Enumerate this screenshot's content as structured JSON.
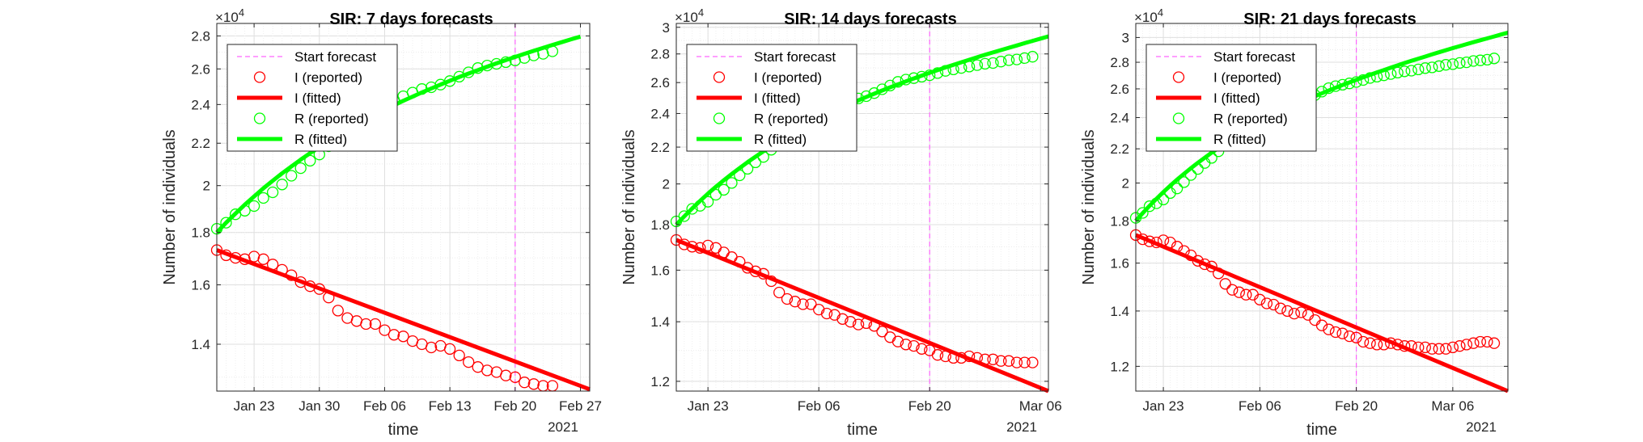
{
  "figure": {
    "panels_count": 3
  },
  "chart_data": [
    {
      "type": "line",
      "title": "SIR: 7 days forecasts",
      "xlabel": "time",
      "ylabel": "Number of individuals",
      "y_scale": "log",
      "y_exponent_label": "×10^4",
      "x_secondary_label": "2021",
      "xlim": [
        "2021-01-19",
        "2021-02-28"
      ],
      "ylim": [
        12600,
        28800
      ],
      "yticks": [
        14000,
        16000,
        18000,
        20000,
        22000,
        24000,
        26000,
        28000
      ],
      "ytick_labels": [
        "1.4",
        "1.6",
        "1.8",
        "2",
        "2.2",
        "2.4",
        "2.6",
        "2.8"
      ],
      "xticks": [
        "2021-01-23",
        "2021-01-30",
        "2021-02-06",
        "2021-02-13",
        "2021-02-20",
        "2021-02-27"
      ],
      "xtick_labels": [
        "Jan 23",
        "Jan 30",
        "Feb 06",
        "Feb 13",
        "Feb 20",
        "Feb 27"
      ],
      "grid": true,
      "legend_position": "top-left",
      "start_forecast": "2021-02-20",
      "series": [
        {
          "name": "Start forecast",
          "role": "vline",
          "color": "#ff66ff",
          "style": "dashed"
        },
        {
          "name": "I (reported)",
          "role": "scatter",
          "color": "#ff0000",
          "x_start": "2021-01-19",
          "values": [
            17300,
            17100,
            17000,
            16950,
            17050,
            16950,
            16750,
            16550,
            16350,
            16100,
            15950,
            15850,
            15550,
            15100,
            14850,
            14750,
            14650,
            14650,
            14450,
            14300,
            14250,
            14100,
            14000,
            13900,
            13950,
            13850,
            13650,
            13450,
            13300,
            13200,
            13150,
            13050,
            13000,
            12850,
            12800,
            12750,
            12750
          ]
        },
        {
          "name": "I (fitted)",
          "role": "line",
          "color": "#ff0000",
          "x": [
            "2021-01-19",
            "2021-02-28"
          ],
          "values": [
            17300,
            12650
          ]
        },
        {
          "name": "R (reported)",
          "role": "scatter",
          "color": "#00ff00",
          "x_start": "2021-01-19",
          "values": [
            18150,
            18400,
            18750,
            18900,
            19100,
            19450,
            19700,
            20050,
            20450,
            20800,
            21150,
            21450,
            21850,
            22250,
            22650,
            23000,
            23350,
            23650,
            24000,
            24250,
            24450,
            24650,
            24850,
            24950,
            25100,
            25300,
            25550,
            25800,
            26050,
            26200,
            26300,
            26400,
            26500,
            26650,
            26800,
            26900,
            27050
          ]
        },
        {
          "name": "R (fitted)",
          "role": "line",
          "color": "#00ff00",
          "x_start": "2021-01-19",
          "values": [
            18000,
            18400,
            18780,
            19160,
            19520,
            19880,
            20220,
            20560,
            20880,
            21200,
            21510,
            21810,
            22110,
            22390,
            22670,
            22940,
            23210,
            23460,
            23710,
            23960,
            24200,
            24430,
            24660,
            24880,
            25100,
            25320,
            25530,
            25730,
            25930,
            26130,
            26330,
            26520,
            26710,
            26900,
            27080,
            27260,
            27440,
            27610,
            27790,
            27960
          ]
        }
      ]
    },
    {
      "type": "line",
      "title": "SIR: 14 days forecasts",
      "xlabel": "time",
      "ylabel": "Number of individuals",
      "y_scale": "log",
      "y_exponent_label": "×10^4",
      "x_secondary_label": "2021",
      "xlim": [
        "2021-01-19",
        "2021-03-07"
      ],
      "ylim": [
        11700,
        30300
      ],
      "yticks": [
        12000,
        14000,
        16000,
        18000,
        20000,
        22000,
        24000,
        26000,
        28000,
        30000
      ],
      "ytick_labels": [
        "1.2",
        "1.4",
        "1.6",
        "1.8",
        "2",
        "2.2",
        "2.4",
        "2.6",
        "2.8",
        "3"
      ],
      "xticks": [
        "2021-01-23",
        "2021-02-06",
        "2021-02-20",
        "2021-03-06"
      ],
      "xtick_labels": [
        "Jan 23",
        "Feb 06",
        "Feb 20",
        "Mar 06"
      ],
      "grid": true,
      "legend_position": "top-left",
      "start_forecast": "2021-02-20",
      "series": [
        {
          "name": "Start forecast",
          "role": "vline",
          "color": "#ff66ff",
          "style": "dashed"
        },
        {
          "name": "I (reported)",
          "role": "scatter",
          "color": "#ff0000",
          "x_start": "2021-01-19",
          "values": [
            17300,
            17100,
            17000,
            16950,
            17050,
            16950,
            16750,
            16550,
            16350,
            16100,
            15950,
            15850,
            15550,
            15100,
            14850,
            14750,
            14650,
            14650,
            14450,
            14300,
            14250,
            14100,
            14000,
            13900,
            13950,
            13850,
            13650,
            13450,
            13300,
            13200,
            13150,
            13050,
            13000,
            12850,
            12800,
            12750,
            12750,
            12800,
            12750,
            12700,
            12700,
            12650,
            12650,
            12600,
            12600,
            12600
          ]
        },
        {
          "name": "I (fitted)",
          "role": "line",
          "color": "#ff0000",
          "x": [
            "2021-01-19",
            "2021-03-07"
          ],
          "values": [
            17300,
            11700
          ]
        },
        {
          "name": "R (reported)",
          "role": "scatter",
          "color": "#00ff00",
          "x_start": "2021-01-19",
          "values": [
            18150,
            18400,
            18750,
            18900,
            19100,
            19450,
            19700,
            20050,
            20450,
            20800,
            21150,
            21450,
            21850,
            22250,
            22650,
            23000,
            23350,
            23650,
            24000,
            24250,
            24450,
            24650,
            24850,
            24950,
            25100,
            25300,
            25550,
            25800,
            26050,
            26200,
            26300,
            26400,
            26500,
            26650,
            26800,
            26900,
            27000,
            27100,
            27200,
            27300,
            27350,
            27450,
            27550,
            27600,
            27700,
            27800
          ]
        },
        {
          "name": "R (fitted)",
          "role": "line",
          "color": "#00ff00",
          "x_start": "2021-01-19",
          "values": [
            18000,
            18390,
            18770,
            19140,
            19500,
            19850,
            20190,
            20520,
            20840,
            21160,
            21460,
            21760,
            22050,
            22340,
            22610,
            22880,
            23150,
            23400,
            23660,
            23900,
            24140,
            24380,
            24600,
            24830,
            25050,
            25260,
            25470,
            25680,
            25880,
            26080,
            26280,
            26470,
            26660,
            26850,
            27040,
            27220,
            27400,
            27580,
            27760,
            27940,
            28110,
            28280,
            28450,
            28620,
            28790,
            28960,
            29130,
            29300
          ]
        }
      ]
    },
    {
      "type": "line",
      "title": "SIR: 21 days forecasts",
      "xlabel": "time",
      "ylabel": "Number of individuals",
      "y_scale": "log",
      "y_exponent_label": "×10^4",
      "x_secondary_label": "2021",
      "xlim": [
        "2021-01-19",
        "2021-03-14"
      ],
      "ylim": [
        11200,
        31200
      ],
      "yticks": [
        12000,
        14000,
        16000,
        18000,
        20000,
        22000,
        24000,
        26000,
        28000,
        30000
      ],
      "ytick_labels": [
        "1.2",
        "1.4",
        "1.6",
        "1.8",
        "2",
        "2.2",
        "2.4",
        "2.6",
        "2.8",
        "3"
      ],
      "xticks": [
        "2021-01-23",
        "2021-02-06",
        "2021-02-20",
        "2021-03-06"
      ],
      "xtick_labels": [
        "Jan 23",
        "Feb 06",
        "Feb 20",
        "Mar 06"
      ],
      "grid": true,
      "legend_position": "top-left",
      "start_forecast": "2021-02-20",
      "series": [
        {
          "name": "Start forecast",
          "role": "vline",
          "color": "#ff66ff",
          "style": "dashed"
        },
        {
          "name": "I (reported)",
          "role": "scatter",
          "color": "#ff0000",
          "x_start": "2021-01-19",
          "values": [
            17300,
            17100,
            17000,
            16950,
            17050,
            16950,
            16750,
            16550,
            16350,
            16100,
            15950,
            15850,
            15550,
            15100,
            14850,
            14750,
            14650,
            14650,
            14450,
            14300,
            14250,
            14100,
            14000,
            13900,
            13950,
            13850,
            13650,
            13450,
            13300,
            13200,
            13150,
            13050,
            13000,
            12850,
            12800,
            12750,
            12750,
            12800,
            12750,
            12700,
            12700,
            12650,
            12650,
            12600,
            12600,
            12600,
            12650,
            12700,
            12750,
            12800,
            12850,
            12850,
            12800
          ]
        },
        {
          "name": "I (fitted)",
          "role": "line",
          "color": "#ff0000",
          "x": [
            "2021-01-19",
            "2021-03-14"
          ],
          "values": [
            17300,
            11200
          ]
        },
        {
          "name": "R (reported)",
          "role": "scatter",
          "color": "#00ff00",
          "x_start": "2021-01-19",
          "values": [
            18150,
            18400,
            18750,
            18900,
            19100,
            19450,
            19700,
            20050,
            20450,
            20800,
            21150,
            21450,
            21850,
            22250,
            22650,
            23000,
            23350,
            23650,
            24000,
            24250,
            24450,
            24650,
            24850,
            24950,
            25100,
            25300,
            25550,
            25800,
            26050,
            26200,
            26300,
            26400,
            26500,
            26650,
            26800,
            26900,
            27000,
            27100,
            27200,
            27300,
            27350,
            27450,
            27550,
            27600,
            27700,
            27800,
            27850,
            27950,
            28000,
            28100,
            28150,
            28200,
            28300
          ]
        },
        {
          "name": "R (fitted)",
          "role": "line",
          "color": "#00ff00",
          "x_start": "2021-01-19",
          "values": [
            18000,
            18390,
            18770,
            19140,
            19500,
            19850,
            20190,
            20520,
            20840,
            21160,
            21460,
            21760,
            22050,
            22340,
            22610,
            22880,
            23150,
            23400,
            23660,
            23900,
            24140,
            24380,
            24600,
            24830,
            25050,
            25260,
            25470,
            25680,
            25880,
            26080,
            26280,
            26470,
            26660,
            26850,
            27040,
            27220,
            27400,
            27580,
            27760,
            27940,
            28110,
            28280,
            28450,
            28620,
            28790,
            28960,
            29130,
            29290,
            29450,
            29610,
            29770,
            29930,
            30090,
            30250,
            30410
          ]
        }
      ]
    }
  ]
}
